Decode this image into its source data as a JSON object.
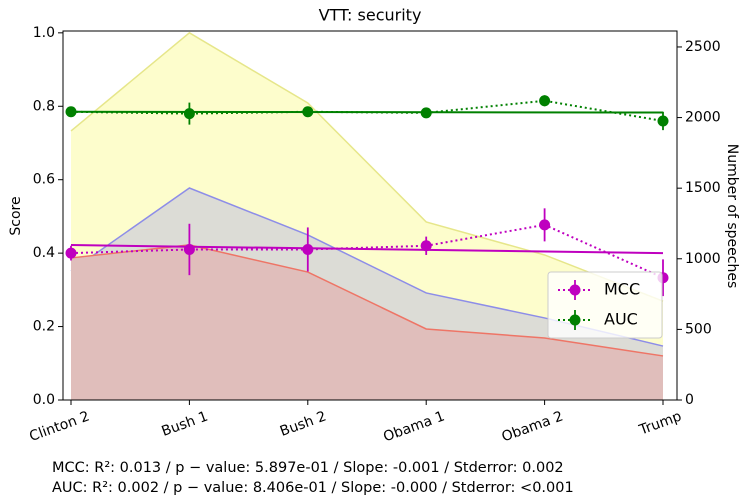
{
  "chart_data": {
    "type": "errorbar-area",
    "title": "VTT: security",
    "ylabel": "Score",
    "y2label": "Number of speeches",
    "categories": [
      "Clinton 2",
      "Bush 1",
      "Bush 2",
      "Obama 1",
      "Obama 2",
      "Trump"
    ],
    "ylim": [
      0,
      1.005
    ],
    "yticks": [
      {
        "value": 0,
        "label": "0.0"
      },
      {
        "value": 0.2,
        "label": "0.2"
      },
      {
        "value": 0.4,
        "label": "0.4"
      },
      {
        "value": 0.6,
        "label": "0.6"
      },
      {
        "value": 0.8,
        "label": "0.8"
      },
      {
        "value": 1,
        "label": "1.0"
      }
    ],
    "y2lim": [
      0,
      2613
    ],
    "y2ticks": [
      0,
      500,
      1000,
      1500,
      2000,
      2500
    ],
    "areas": [
      {
        "axis": "y2",
        "color": "#fdfdcc",
        "line_color": "#e6e68a",
        "values": [
          1905,
          2600,
          2103,
          1261,
          1027,
          700
        ]
      },
      {
        "axis": "y2",
        "color": "#dcdcd6",
        "line_color": "#8d8de8",
        "values": [
          914,
          1501,
          1169,
          758,
          581,
          382
        ]
      },
      {
        "axis": "y2",
        "color": "#e0bebb",
        "line_color": "#ee7566",
        "values": [
          1006,
          1098,
          906,
          503,
          439,
          312
        ]
      }
    ],
    "series": [
      {
        "name": "MCC",
        "color": "#bf00bf",
        "values": [
          0.4,
          0.41,
          0.41,
          0.42,
          0.477,
          0.333
        ],
        "errors": [
          0.02,
          0.07,
          0.06,
          0.025,
          0.045,
          0.05
        ],
        "trend": [
          0.422,
          0.4
        ]
      },
      {
        "name": "AUC",
        "color": "#008000",
        "values": [
          0.785,
          0.78,
          0.785,
          0.782,
          0.815,
          0.76
        ],
        "errors": [
          0.01,
          0.03,
          0.008,
          0.01,
          0.015,
          0.025
        ],
        "trend": [
          0.785,
          0.783
        ]
      }
    ],
    "legend": "center right",
    "notes": [
      "MCC: R²: 0.013 / p − value: 5.897e-01 / Slope: -0.001 / Stderror: 0.002",
      "AUC: R²: 0.002 / p − value: 8.406e-01 / Slope: -0.000 / Stderror: <0.001"
    ]
  }
}
